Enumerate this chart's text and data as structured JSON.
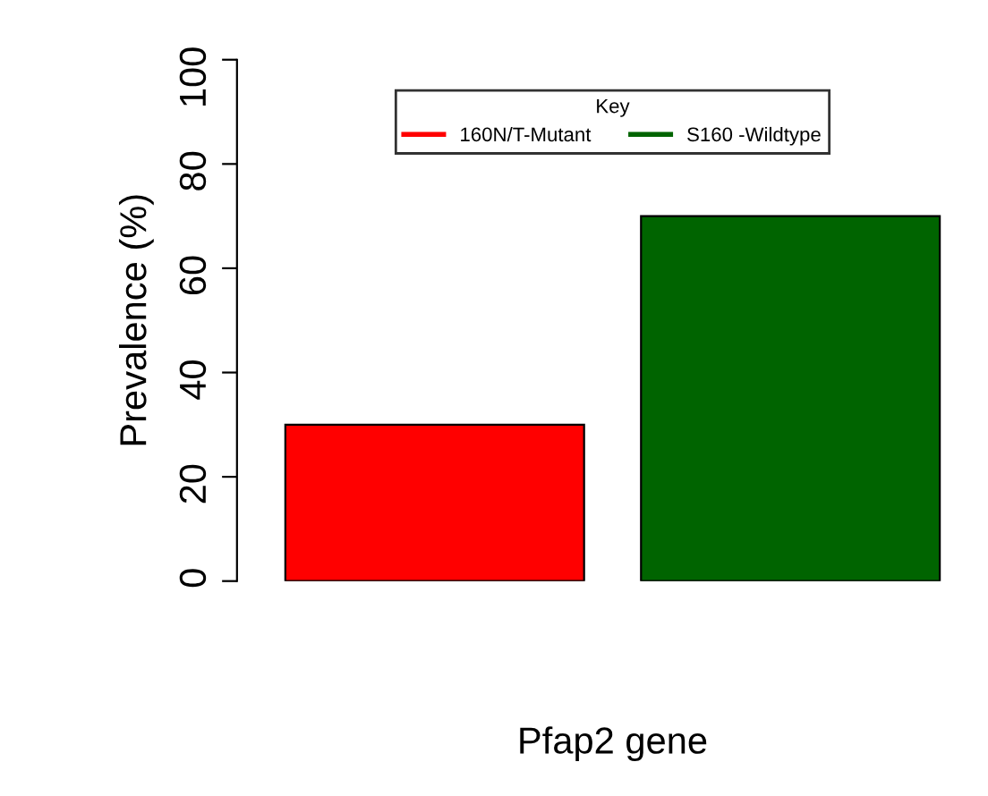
{
  "chart_data": {
    "type": "bar",
    "xlabel": "Pfap2 gene",
    "ylabel": "Prevalence (%)",
    "legend_title": "Key",
    "categories": [
      null,
      null
    ],
    "stacked": true,
    "series": [
      {
        "name": "160N/T-Mutant",
        "color": "#ff0000",
        "values": [
          30,
          0
        ]
      },
      {
        "name": "S160 -Wildtype",
        "color": "#006400",
        "values": [
          0,
          70
        ]
      }
    ],
    "ylim": [
      0,
      100
    ],
    "yticks": [
      0,
      20,
      40,
      60,
      80,
      100
    ],
    "grid": false,
    "legend": "top"
  }
}
